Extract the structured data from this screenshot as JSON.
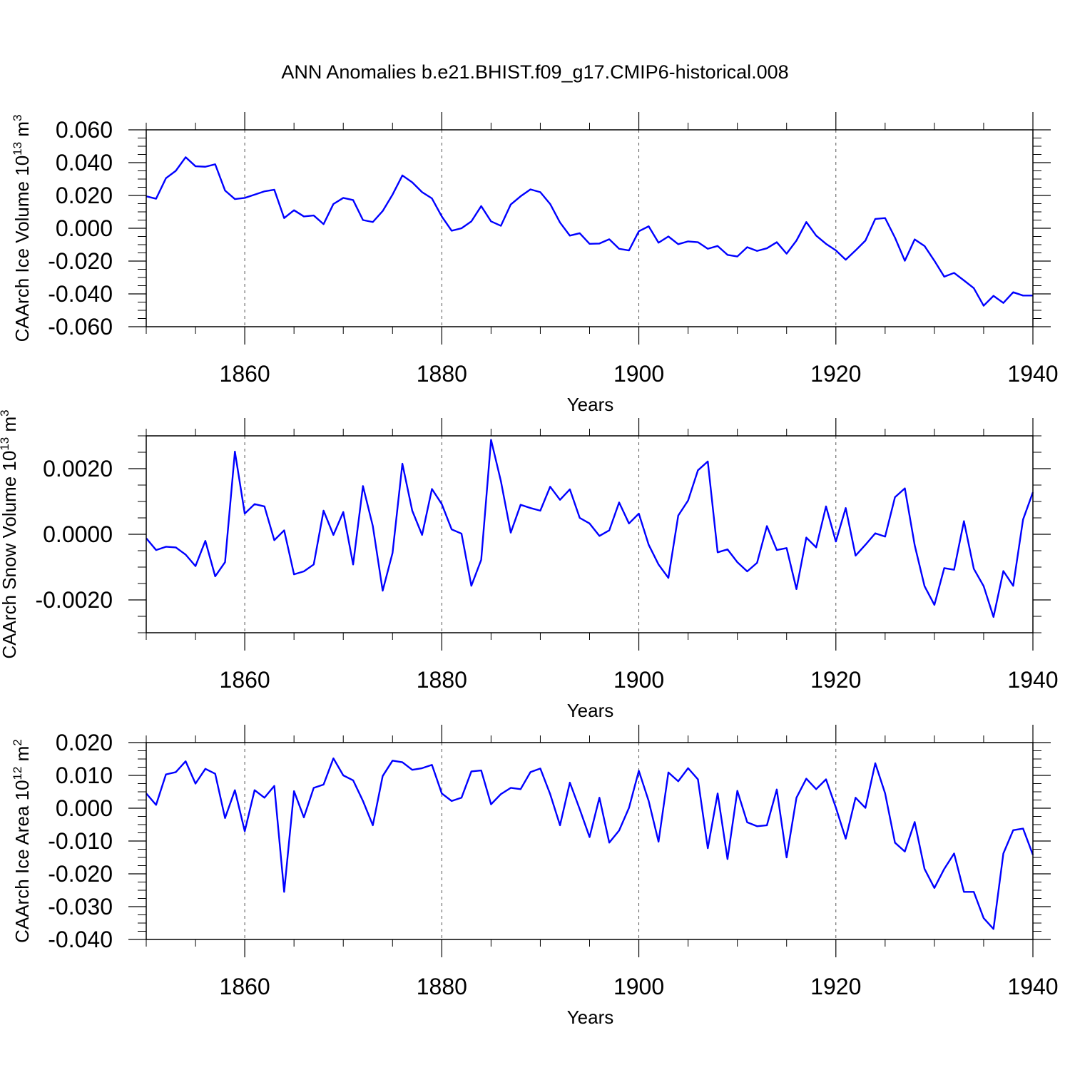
{
  "title": "ANN Anomalies b.e21.BHIST.f09_g17.CMIP6-historical.008",
  "line_color": "#0000ff",
  "chart_data": [
    {
      "type": "line",
      "ylabel": "CAArch Ice Volume",
      "ylabel_unit_base": "10",
      "ylabel_unit_exp": "13",
      "ylabel_unit_sym": "m",
      "ylabel_unit_sym_exp": "3",
      "xlabel": "Years",
      "xlim": [
        1850,
        1940
      ],
      "ylim": [
        -0.06,
        0.06
      ],
      "yticks": [
        -0.06,
        -0.04,
        -0.02,
        0.0,
        0.02,
        0.04,
        0.06
      ],
      "ytick_labels": [
        "-0.060",
        "-0.040",
        "-0.020",
        "0.000",
        "0.020",
        "0.040",
        "0.060"
      ],
      "xticks": [
        1860,
        1880,
        1900,
        1920,
        1940
      ],
      "xtick_labels": [
        "1860",
        "1880",
        "1900",
        "1920",
        "1940"
      ],
      "grid": "dashed vertical at major x ticks",
      "series": [
        {
          "x_start": 1850,
          "values": [
            0.0195,
            0.018,
            0.0305,
            0.035,
            0.0433,
            0.0378,
            0.0375,
            0.039,
            0.023,
            0.0178,
            0.0185,
            0.0205,
            0.0225,
            0.0235,
            0.0062,
            0.011,
            0.0072,
            0.0078,
            0.0025,
            0.0148,
            0.0185,
            0.0172,
            0.005,
            0.0038,
            0.0105,
            0.0205,
            0.0322,
            0.028,
            0.022,
            0.0182,
            0.0072,
            -0.0015,
            0.0,
            0.0042,
            0.0135,
            0.0042,
            0.0015,
            0.0145,
            0.0195,
            0.0237,
            0.022,
            0.0148,
            0.0035,
            -0.0045,
            -0.003,
            -0.0095,
            -0.0093,
            -0.0067,
            -0.0125,
            -0.0135,
            -0.0018,
            0.0012,
            -0.0088,
            -0.005,
            -0.0097,
            -0.008,
            -0.0085,
            -0.0125,
            -0.0108,
            -0.0162,
            -0.0172,
            -0.0115,
            -0.0138,
            -0.0122,
            -0.0085,
            -0.0155,
            -0.0075,
            0.0038,
            -0.0045,
            -0.0095,
            -0.0135,
            -0.0192,
            -0.0135,
            -0.0075,
            0.0057,
            0.0062,
            -0.0057,
            -0.0198,
            -0.0068,
            -0.0108,
            -0.0198,
            -0.0295,
            -0.0272,
            -0.0318,
            -0.0365,
            -0.0472,
            -0.0412,
            -0.0455,
            -0.039,
            -0.041,
            -0.041
          ]
        }
      ]
    },
    {
      "type": "line",
      "ylabel": "CAArch Snow Volume",
      "ylabel_unit_base": "10",
      "ylabel_unit_exp": "13",
      "ylabel_unit_sym": "m",
      "ylabel_unit_sym_exp": "3",
      "xlabel": "Years",
      "xlim": [
        1850,
        1940
      ],
      "ylim": [
        -0.003,
        0.003
      ],
      "yticks": [
        -0.002,
        0.0,
        0.002
      ],
      "ytick_labels": [
        "-0.0020",
        "0.0000",
        "0.0020"
      ],
      "xticks": [
        1860,
        1880,
        1900,
        1920,
        1940
      ],
      "xtick_labels": [
        "1860",
        "1880",
        "1900",
        "1920",
        "1940"
      ],
      "grid": "dashed vertical at major x ticks",
      "series": [
        {
          "x_start": 1850,
          "values": [
            -0.00012,
            -0.00048,
            -0.00038,
            -0.0004,
            -0.00062,
            -0.00097,
            -0.0002,
            -0.00128,
            -0.00085,
            0.00252,
            0.00063,
            0.00092,
            0.00085,
            -0.00018,
            0.00012,
            -0.00122,
            -0.00113,
            -0.00092,
            0.00072,
            -2e-05,
            0.00068,
            -0.00092,
            0.00147,
            0.00025,
            -0.00172,
            -0.00057,
            0.00215,
            0.00072,
            -2e-05,
            0.00138,
            0.00092,
            0.00015,
            2e-05,
            -0.00157,
            -0.00078,
            0.00288,
            0.00162,
            5e-05,
            0.0009,
            0.0008,
            0.00072,
            0.00145,
            0.00105,
            0.00137,
            0.0005,
            0.00033,
            -5e-05,
            0.00012,
            0.00097,
            0.00033,
            0.00063,
            -0.00032,
            -0.00092,
            -0.00133,
            0.00057,
            0.00103,
            0.00195,
            0.00222,
            -0.00055,
            -0.00046,
            -0.00085,
            -0.00113,
            -0.00087,
            0.00025,
            -0.00048,
            -0.00042,
            -0.00167,
            -0.0001,
            -0.0004,
            0.00085,
            -0.00022,
            0.0008,
            -0.00065,
            -0.00032,
            3e-05,
            -7e-05,
            0.00113,
            0.0014,
            -0.00033,
            -0.00158,
            -0.00215,
            -0.00103,
            -0.00108,
            0.0004,
            -0.00105,
            -0.00158,
            -0.00252,
            -0.00112,
            -0.00157,
            0.00045,
            0.00128
          ]
        }
      ]
    },
    {
      "type": "line",
      "ylabel": "CAArch Ice Area",
      "ylabel_unit_base": "10",
      "ylabel_unit_exp": "12",
      "ylabel_unit_sym": "m",
      "ylabel_unit_sym_exp": "2",
      "xlabel": "Years",
      "xlim": [
        1850,
        1940
      ],
      "ylim": [
        -0.04,
        0.02
      ],
      "yticks": [
        -0.04,
        -0.03,
        -0.02,
        -0.01,
        0.0,
        0.01,
        0.02
      ],
      "ytick_labels": [
        "-0.040",
        "-0.030",
        "-0.020",
        "-0.010",
        "0.000",
        "0.010",
        "0.020"
      ],
      "xticks": [
        1860,
        1880,
        1900,
        1920,
        1940
      ],
      "xtick_labels": [
        "1860",
        "1880",
        "1900",
        "1920",
        "1940"
      ],
      "grid": "dashed vertical at major x ticks",
      "series": [
        {
          "x_start": 1850,
          "values": [
            0.0045,
            0.001,
            0.0103,
            0.011,
            0.0143,
            0.0075,
            0.012,
            0.0105,
            -0.003,
            0.0055,
            -0.007,
            0.0055,
            0.0032,
            0.0068,
            -0.0255,
            0.0052,
            -0.0028,
            0.0062,
            0.0072,
            0.0152,
            0.01,
            0.0085,
            0.0022,
            -0.0052,
            0.0098,
            0.0145,
            0.014,
            0.0117,
            0.0122,
            0.0132,
            0.0045,
            0.0022,
            0.0032,
            0.0112,
            0.0115,
            0.0012,
            0.0043,
            0.0062,
            0.0058,
            0.011,
            0.0121,
            0.0043,
            -0.0052,
            0.0078,
            -0.0003,
            -0.0088,
            0.0032,
            -0.0105,
            -0.0068,
            0.0001,
            0.0114,
            0.0022,
            -0.0102,
            0.0109,
            0.0082,
            0.0122,
            0.0088,
            -0.0122,
            0.0045,
            -0.0155,
            0.0053,
            -0.0043,
            -0.0055,
            -0.0052,
            0.0057,
            -0.015,
            0.0032,
            0.009,
            0.0058,
            0.0088,
            0.0002,
            -0.0093,
            0.0032,
            0.0001,
            0.0137,
            0.0045,
            -0.0105,
            -0.0132,
            -0.0042,
            -0.0185,
            -0.0243,
            -0.0185,
            -0.0138,
            -0.0255,
            -0.0255,
            -0.0335,
            -0.0368,
            -0.0138,
            -0.0067,
            -0.0062,
            -0.0142
          ]
        }
      ]
    }
  ]
}
